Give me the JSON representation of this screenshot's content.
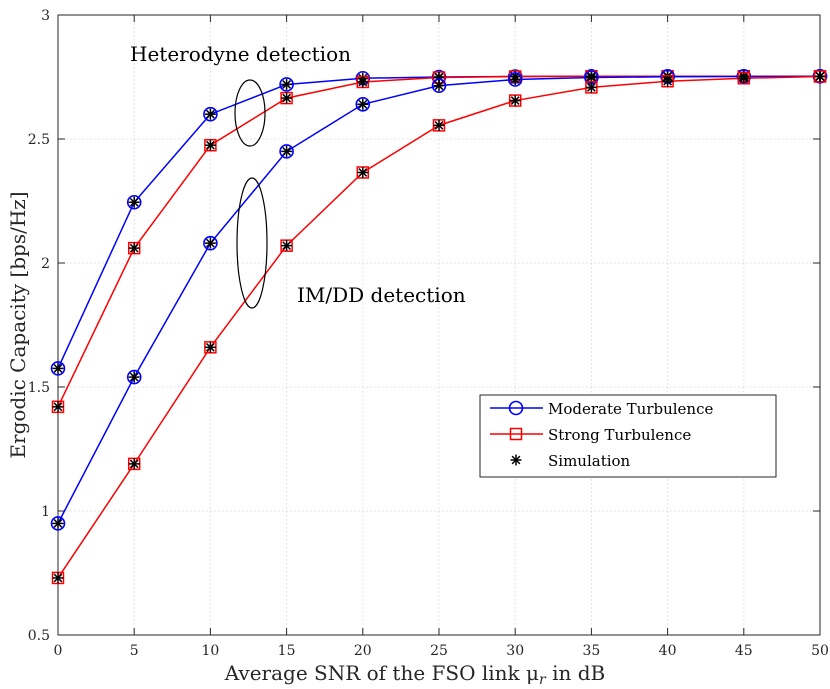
{
  "chart_data": {
    "type": "line",
    "xlabel": "Average SNR of the FSO link μ",
    "xlabel_sub": "r",
    "xlabel_tail": " in dB",
    "ylabel": "Ergodic Capacity [bps/Hz]",
    "xlim": [
      0,
      50
    ],
    "ylim": [
      0.5,
      3
    ],
    "grid": true,
    "legend_position": "right",
    "x": [
      0,
      5,
      10,
      15,
      20,
      25,
      30,
      35,
      40,
      45,
      50
    ],
    "x_ticks": [
      "0",
      "5",
      "10",
      "15",
      "20",
      "25",
      "30",
      "35",
      "40",
      "45",
      "50"
    ],
    "y_ticks": [
      "0.5",
      "1",
      "1.5",
      "2",
      "2.5",
      "3"
    ],
    "series": [
      {
        "name": "Moderate Turbulence (Heterodyne)",
        "color": "#0000ff",
        "marker": "circle",
        "values": [
          1.575,
          2.245,
          2.6,
          2.72,
          2.745,
          2.75,
          2.752,
          2.753,
          2.753,
          2.753,
          2.753
        ]
      },
      {
        "name": "Strong Turbulence (Heterodyne)",
        "color": "#ff0000",
        "marker": "square",
        "values": [
          1.42,
          2.06,
          2.475,
          2.665,
          2.73,
          2.748,
          2.752,
          2.753,
          2.753,
          2.753,
          2.753
        ]
      },
      {
        "name": "Moderate Turbulence (IM/DD)",
        "color": "#0000ff",
        "marker": "circle",
        "values": [
          0.95,
          1.54,
          2.08,
          2.45,
          2.64,
          2.715,
          2.74,
          2.748,
          2.751,
          2.752,
          2.753
        ]
      },
      {
        "name": "Strong Turbulence (IM/DD)",
        "color": "#ff0000",
        "marker": "square",
        "values": [
          0.73,
          1.19,
          1.66,
          2.07,
          2.365,
          2.555,
          2.655,
          2.708,
          2.733,
          2.745,
          2.752
        ]
      }
    ],
    "annotations": [
      {
        "text": "Heterodyne detection"
      },
      {
        "text": "IM/DD detection"
      }
    ],
    "legend": [
      {
        "label": "Moderate Turbulence",
        "color": "#0000ff",
        "marker": "circle"
      },
      {
        "label": "Strong Turbulence",
        "color": "#ff0000",
        "marker": "square"
      },
      {
        "label": "Simulation",
        "color": "#000000",
        "marker": "asterisk"
      }
    ]
  }
}
